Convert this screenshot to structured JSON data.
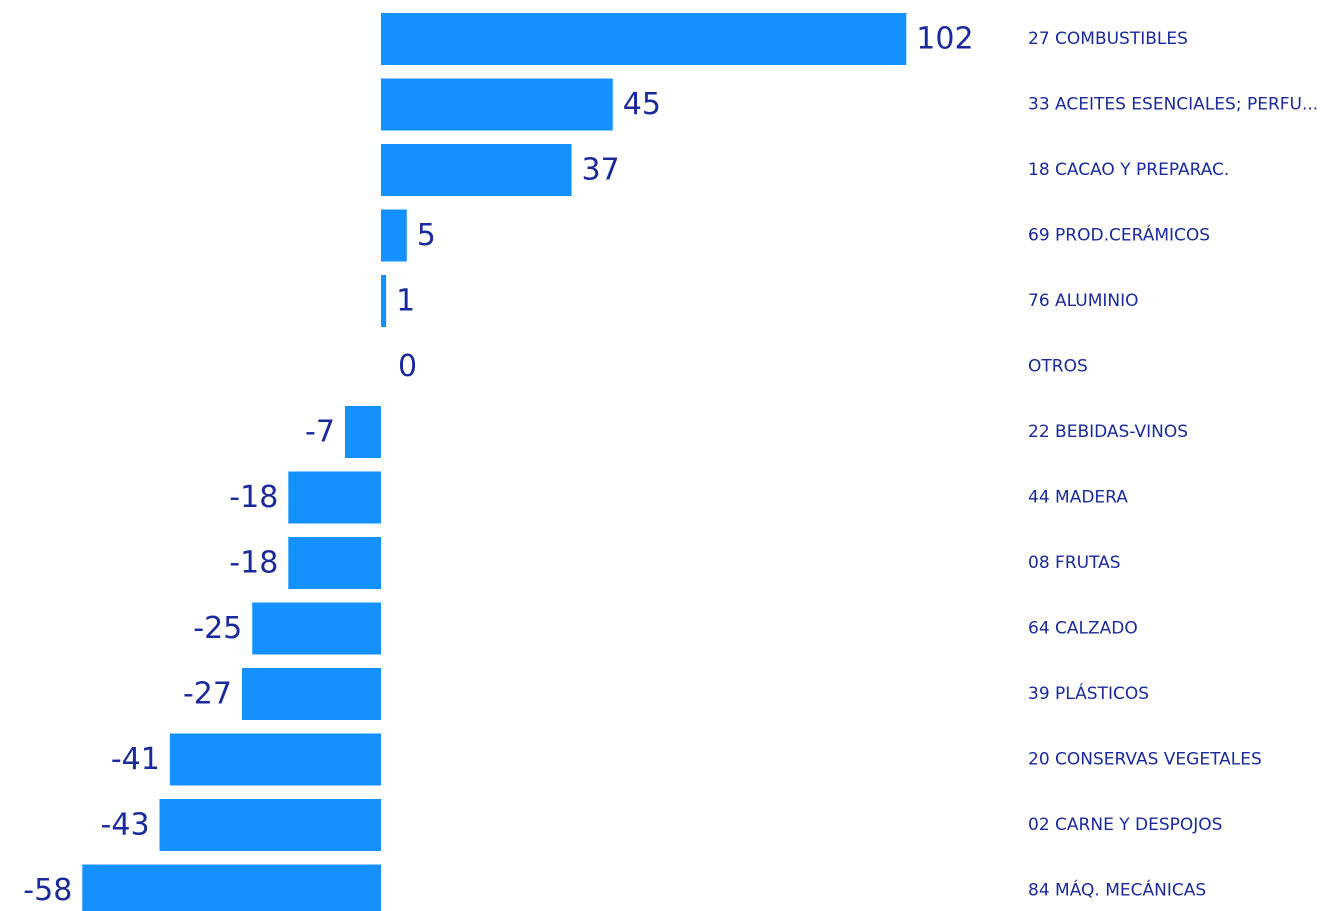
{
  "chart_data": {
    "type": "bar",
    "orientation": "horizontal",
    "categories": [
      "27 COMBUSTIBLES",
      "33 ACEITES ESENCIALES; PERFU...",
      "18 CACAO Y PREPARAC.",
      "69 PROD.CERÁMICOS",
      "76 ALUMINIO",
      "OTROS",
      "22 BEBIDAS-VINOS",
      "44 MADERA",
      "08 FRUTAS",
      "64 CALZADO",
      "39 PLÁSTICOS",
      "20 CONSERVAS VEGETALES",
      "02 CARNE Y DESPOJOS",
      "84 MÁQ. MECÁNICAS"
    ],
    "values": [
      102,
      45,
      37,
      5,
      1,
      0,
      -7,
      -18,
      -18,
      -25,
      -27,
      -41,
      -43,
      -58
    ],
    "value_labels": [
      "102",
      "45",
      "37",
      "5",
      "1",
      "0",
      "-7",
      "-18",
      "-18",
      "-25",
      "-27",
      "-41",
      "-43",
      "-58"
    ],
    "xlim": [
      -58,
      102
    ],
    "grid": false,
    "legend": "none",
    "bar_color": "#1490FF",
    "label_color": "#1a2a9a"
  }
}
